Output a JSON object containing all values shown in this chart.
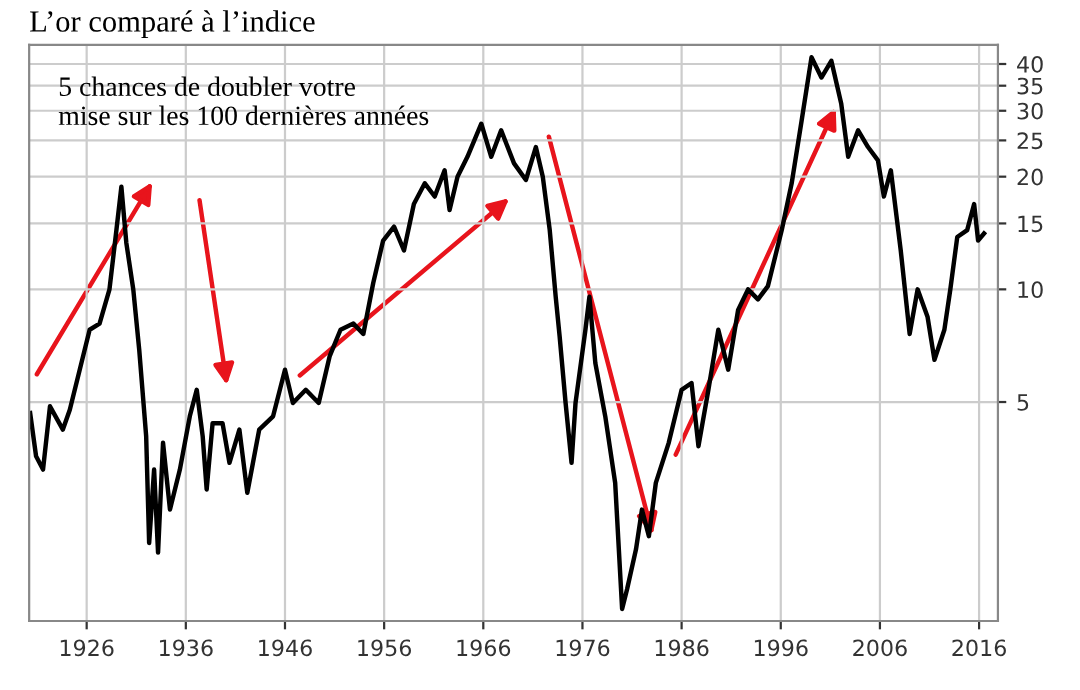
{
  "chart_data": {
    "type": "line",
    "title": "L’or comparé à l’indice",
    "annotations": [
      "5 chances de doubler votre\nmise sur les 100 dernières années"
    ],
    "x": [
      1920.3,
      1920.9,
      1921.6,
      1922.3,
      1923.6,
      1924.3,
      1925.3,
      1926.3,
      1927.3,
      1928.3,
      1929.0,
      1929.5,
      1930.0,
      1930.7,
      1931.3,
      1932.0,
      1932.3,
      1932.8,
      1933.2,
      1933.7,
      1934.4,
      1935.4,
      1936.4,
      1937.1,
      1937.7,
      1938.1,
      1938.7,
      1939.7,
      1940.4,
      1941.4,
      1942.2,
      1943.4,
      1944.8,
      1946.0,
      1946.8,
      1948.1,
      1949.4,
      1950.5,
      1951.6,
      1952.9,
      1953.9,
      1954.9,
      1955.9,
      1957.0,
      1958.0,
      1959.0,
      1960.1,
      1961.1,
      1962.1,
      1962.6,
      1963.4,
      1964.4,
      1965.8,
      1966.8,
      1967.8,
      1969.1,
      1970.3,
      1971.3,
      1972.0,
      1972.7,
      1973.3,
      1973.7,
      1974.3,
      1974.9,
      1975.3,
      1976.3,
      1976.7,
      1977.3,
      1978.3,
      1979.3,
      1980.0,
      1980.5,
      1981.4,
      1982.0,
      1982.7,
      1983.4,
      1984.7,
      1986.0,
      1987.0,
      1987.7,
      1988.7,
      1989.7,
      1990.7,
      1991.7,
      1992.7,
      1993.7,
      1994.7,
      1996.1,
      1997.1,
      1998.1,
      1999.1,
      2000.1,
      2001.1,
      2002.1,
      2002.8,
      2003.8,
      2004.8,
      2005.8,
      2006.4,
      2007.1,
      2008.1,
      2009.0,
      2009.8,
      2010.8,
      2011.5,
      2012.5,
      2013.1,
      2013.8,
      2014.8,
      2015.5,
      2015.9,
      2016.5
    ],
    "series": [
      {
        "color": "#000000",
        "values": [
          4.67,
          3.58,
          3.3,
          4.87,
          4.22,
          4.77,
          6.1,
          7.8,
          8.1,
          10,
          14.4,
          18.8,
          13.3,
          10,
          6.9,
          4.05,
          2.1,
          3.3,
          1.98,
          3.89,
          2.58,
          3.3,
          4.58,
          5.39,
          4.05,
          2.92,
          4.39,
          4.39,
          3.44,
          4.22,
          2.86,
          4.22,
          4.58,
          6.1,
          4.97,
          5.39,
          4.97,
          6.62,
          7.8,
          8.1,
          7.6,
          10.4,
          13.5,
          14.7,
          12.7,
          16.9,
          19.2,
          17.7,
          20.8,
          16.3,
          20.0,
          22.6,
          27.7,
          22.6,
          26.6,
          21.7,
          19.6,
          24.0,
          20.0,
          14.4,
          9.56,
          7.48,
          4.97,
          3.44,
          4.97,
          7.8,
          9.56,
          6.35,
          4.58,
          3.04,
          1.4,
          1.58,
          2.02,
          2.58,
          2.19,
          3.04,
          3.89,
          5.39,
          5.62,
          3.81,
          5.39,
          7.8,
          6.1,
          8.81,
          10,
          9.4,
          10.2,
          14.4,
          19.2,
          28.2,
          41.7,
          36.8,
          40.8,
          31.3,
          22.6,
          26.6,
          24.0,
          22.1,
          17.7,
          20.8,
          12.7,
          7.6,
          10,
          8.45,
          6.48,
          7.8,
          10,
          13.8,
          14.4,
          16.9,
          13.5,
          14.1
        ]
      }
    ],
    "log": "y",
    "xlim": [
      1920.2,
      2017.9
    ],
    "ylim": [
      1.3,
      45
    ],
    "xticks": [
      1926,
      1936,
      1946,
      1956,
      1966,
      1976,
      1986,
      1996,
      2006,
      2016
    ],
    "yticks": [
      5,
      10,
      15,
      20,
      25,
      30,
      35,
      40
    ],
    "grid": true,
    "line_style": "solid",
    "marker": "none",
    "legend": false
  }
}
